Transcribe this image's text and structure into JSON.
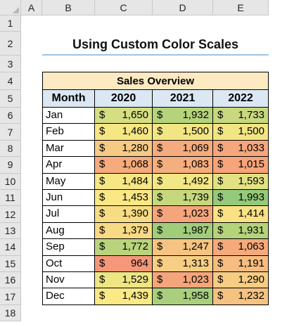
{
  "columns": [
    "A",
    "B",
    "C",
    "D",
    "E"
  ],
  "rows": [
    "1",
    "2",
    "3",
    "4",
    "5",
    "6",
    "7",
    "8",
    "9",
    "10",
    "11",
    "12",
    "13",
    "14",
    "15",
    "16",
    "17",
    "18"
  ],
  "title": "Using Custom Color Scales",
  "table": {
    "caption": "Sales Overview",
    "headers": [
      "Month",
      "2020",
      "2021",
      "2022"
    ],
    "currency": "$",
    "rows": [
      {
        "month": "Jan",
        "values": [
          "1,650",
          "1,932",
          "1,733"
        ],
        "colors": [
          "#d5de82",
          "#b5d37a",
          "#c8d87e"
        ]
      },
      {
        "month": "Feb",
        "values": [
          "1,460",
          "1,500",
          "1,500"
        ],
        "colors": [
          "#f7e784",
          "#f2e584",
          "#f2e584"
        ]
      },
      {
        "month": "Mar",
        "values": [
          "1,280",
          "1,069",
          "1,033"
        ],
        "colors": [
          "#f6c984",
          "#f5ab7d",
          "#f5a67c"
        ]
      },
      {
        "month": "Apr",
        "values": [
          "1,068",
          "1,083",
          "1,015"
        ],
        "colors": [
          "#f5ab7d",
          "#f5ae7e",
          "#f5a47b"
        ]
      },
      {
        "month": "May",
        "values": [
          "1,484",
          "1,492",
          "1,593"
        ],
        "colors": [
          "#f6e784",
          "#f3e684",
          "#e2e284"
        ]
      },
      {
        "month": "Jun",
        "values": [
          "1,453",
          "1,739",
          "1,993"
        ],
        "colors": [
          "#fae885",
          "#c6d87e",
          "#95c97b"
        ]
      },
      {
        "month": "Jul",
        "values": [
          "1,390",
          "1,023",
          "1,414"
        ],
        "colors": [
          "#f8dc84",
          "#f5a57b",
          "#fae284"
        ]
      },
      {
        "month": "Aug",
        "values": [
          "1,379",
          "1,987",
          "1,931"
        ],
        "colors": [
          "#f8d984",
          "#a0cc7c",
          "#b5d37a"
        ]
      },
      {
        "month": "Sep",
        "values": [
          "1,772",
          "1,247",
          "1,063"
        ],
        "colors": [
          "#b9d47d",
          "#f6c482",
          "#f5aa7c"
        ]
      },
      {
        "month": "Oct",
        "values": [
          "964",
          "1,313",
          "1,191"
        ],
        "colors": [
          "#f4977a",
          "#f7cf84",
          "#f6bc80"
        ]
      },
      {
        "month": "Nov",
        "values": [
          "1,529",
          "1,023",
          "1,290"
        ],
        "colors": [
          "#eee584",
          "#f5a57b",
          "#f7cc84"
        ]
      },
      {
        "month": "Dec",
        "values": [
          "1,439",
          "1,958",
          "1,232"
        ],
        "colors": [
          "#fbe985",
          "#a9cf7d",
          "#f6c281"
        ]
      }
    ]
  },
  "colors": {
    "header_bg": "#e6e6e6",
    "caption_bg": "#fde9c2",
    "column_header_bg": "#dbe8f4",
    "title_underline": "#9dc3e6"
  }
}
